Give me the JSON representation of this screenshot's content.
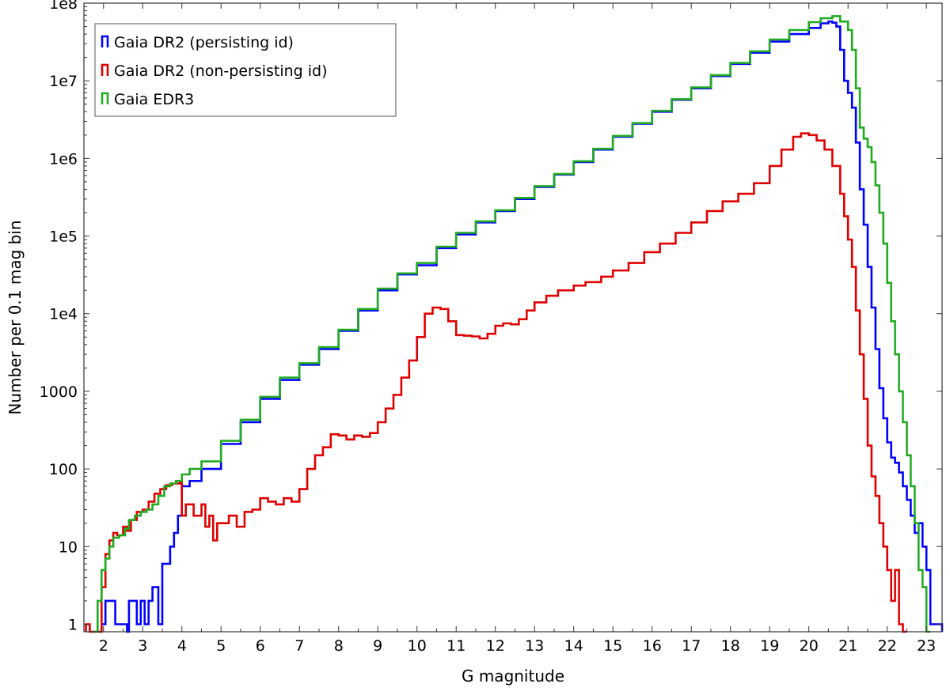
{
  "chart_data": {
    "type": "line",
    "style": "step-histogram",
    "xlabel": "G magnitude",
    "ylabel": "Number per 0.1 mag bin",
    "xlim": [
      1.5,
      23.4
    ],
    "ylim": [
      0.8,
      100000000
    ],
    "yscale": "log",
    "x_ticks": [
      2,
      3,
      4,
      5,
      6,
      7,
      8,
      9,
      10,
      11,
      12,
      13,
      14,
      15,
      16,
      17,
      18,
      19,
      20,
      21,
      22,
      23
    ],
    "y_ticks": [
      {
        "value": 1,
        "label": "1"
      },
      {
        "value": 10,
        "label": "10"
      },
      {
        "value": 100,
        "label": "100"
      },
      {
        "value": 1000,
        "label": "1000"
      },
      {
        "value": 10000,
        "label": "1e4"
      },
      {
        "value": 100000,
        "label": "1e5"
      },
      {
        "value": 1000000,
        "label": "1e6"
      },
      {
        "value": 10000000,
        "label": "1e7"
      },
      {
        "value": 100000000,
        "label": "1e8"
      }
    ],
    "legend_position": "top-left",
    "series": [
      {
        "name": "Gaia DR2 (persisting id)",
        "color": "#0000ff",
        "points": [
          [
            1.95,
            1
          ],
          [
            2.05,
            2
          ],
          [
            2.3,
            1
          ],
          [
            2.6,
            0.8
          ],
          [
            2.65,
            2
          ],
          [
            2.85,
            1
          ],
          [
            2.95,
            2
          ],
          [
            3.05,
            1
          ],
          [
            3.15,
            2
          ],
          [
            3.25,
            3
          ],
          [
            3.4,
            1
          ],
          [
            3.5,
            6
          ],
          [
            3.6,
            6
          ],
          [
            3.7,
            10
          ],
          [
            3.8,
            15
          ],
          [
            3.9,
            25
          ],
          [
            4.0,
            60
          ],
          [
            4.2,
            70
          ],
          [
            4.5,
            100
          ],
          [
            5,
            210
          ],
          [
            5.5,
            400
          ],
          [
            6,
            800
          ],
          [
            6.5,
            1400
          ],
          [
            7,
            2200
          ],
          [
            7.5,
            3500
          ],
          [
            8,
            6000
          ],
          [
            8.5,
            11000
          ],
          [
            9,
            20000
          ],
          [
            9.5,
            32000
          ],
          [
            10,
            42000
          ],
          [
            10.5,
            70000
          ],
          [
            11,
            105000
          ],
          [
            11.5,
            150000
          ],
          [
            12,
            210000
          ],
          [
            12.5,
            300000
          ],
          [
            13,
            430000
          ],
          [
            13.5,
            620000
          ],
          [
            14,
            900000
          ],
          [
            14.5,
            1300000
          ],
          [
            15,
            1900000
          ],
          [
            15.5,
            2800000
          ],
          [
            16,
            4000000
          ],
          [
            16.5,
            5700000
          ],
          [
            17,
            8000000
          ],
          [
            17.5,
            11500000
          ],
          [
            18,
            16500000
          ],
          [
            18.5,
            23000000
          ],
          [
            19,
            32000000
          ],
          [
            19.5,
            40000000
          ],
          [
            20,
            48000000
          ],
          [
            20.3,
            55000000
          ],
          [
            20.5,
            58000000
          ],
          [
            20.6,
            56000000
          ],
          [
            20.7,
            50000000
          ],
          [
            20.8,
            25000000
          ],
          [
            20.9,
            10000000
          ],
          [
            21.0,
            7000000
          ],
          [
            21.1,
            4500000
          ],
          [
            21.2,
            1600000
          ],
          [
            21.3,
            400000
          ],
          [
            21.4,
            140000
          ],
          [
            21.5,
            40000
          ],
          [
            21.6,
            12000
          ],
          [
            21.7,
            3500
          ],
          [
            21.8,
            1100
          ],
          [
            21.9,
            450
          ],
          [
            22.0,
            220
          ],
          [
            22.1,
            140
          ],
          [
            22.2,
            120
          ],
          [
            22.3,
            90
          ],
          [
            22.4,
            60
          ],
          [
            22.5,
            40
          ],
          [
            22.6,
            25
          ],
          [
            22.7,
            15
          ],
          [
            22.8,
            20
          ],
          [
            22.9,
            10
          ],
          [
            23.0,
            5
          ],
          [
            23.1,
            1
          ],
          [
            23.4,
            1
          ]
        ]
      },
      {
        "name": "Gaia DR2 (non-persisting id)",
        "color": "#dd0000",
        "points": [
          [
            1.55,
            1
          ],
          [
            1.65,
            0.8
          ],
          [
            1.85,
            0.8
          ],
          [
            1.95,
            3
          ],
          [
            2.05,
            8
          ],
          [
            2.15,
            12
          ],
          [
            2.25,
            15
          ],
          [
            2.35,
            14
          ],
          [
            2.5,
            18
          ],
          [
            2.6,
            16
          ],
          [
            2.7,
            22
          ],
          [
            2.85,
            28
          ],
          [
            3.0,
            30
          ],
          [
            3.15,
            38
          ],
          [
            3.3,
            48
          ],
          [
            3.45,
            55
          ],
          [
            3.6,
            62
          ],
          [
            3.75,
            65
          ],
          [
            3.95,
            70
          ],
          [
            4.0,
            25
          ],
          [
            4.1,
            35
          ],
          [
            4.3,
            25
          ],
          [
            4.5,
            35
          ],
          [
            4.6,
            18
          ],
          [
            4.7,
            25
          ],
          [
            4.8,
            12
          ],
          [
            4.9,
            20
          ],
          [
            5.0,
            20
          ],
          [
            5.2,
            25
          ],
          [
            5.4,
            18
          ],
          [
            5.6,
            28
          ],
          [
            5.8,
            30
          ],
          [
            6.0,
            42
          ],
          [
            6.2,
            38
          ],
          [
            6.4,
            35
          ],
          [
            6.6,
            42
          ],
          [
            6.8,
            38
          ],
          [
            7.0,
            55
          ],
          [
            7.2,
            100
          ],
          [
            7.4,
            150
          ],
          [
            7.6,
            190
          ],
          [
            7.8,
            280
          ],
          [
            8.0,
            270
          ],
          [
            8.2,
            240
          ],
          [
            8.4,
            270
          ],
          [
            8.6,
            260
          ],
          [
            8.8,
            290
          ],
          [
            9.0,
            400
          ],
          [
            9.2,
            600
          ],
          [
            9.4,
            900
          ],
          [
            9.6,
            1500
          ],
          [
            9.8,
            2500
          ],
          [
            10.0,
            5000
          ],
          [
            10.2,
            10000
          ],
          [
            10.4,
            12000
          ],
          [
            10.6,
            11500
          ],
          [
            10.8,
            8000
          ],
          [
            11.0,
            5300
          ],
          [
            11.2,
            5200
          ],
          [
            11.4,
            5100
          ],
          [
            11.6,
            4800
          ],
          [
            11.8,
            5500
          ],
          [
            12.0,
            7000
          ],
          [
            12.2,
            7500
          ],
          [
            12.4,
            7300
          ],
          [
            12.6,
            8500
          ],
          [
            12.8,
            11000
          ],
          [
            13.0,
            14000
          ],
          [
            13.3,
            17000
          ],
          [
            13.6,
            20000
          ],
          [
            14.0,
            23000
          ],
          [
            14.3,
            25500
          ],
          [
            14.7,
            30000
          ],
          [
            15.0,
            36000
          ],
          [
            15.4,
            45000
          ],
          [
            15.8,
            62000
          ],
          [
            16.2,
            80000
          ],
          [
            16.6,
            110000
          ],
          [
            17.0,
            150000
          ],
          [
            17.4,
            210000
          ],
          [
            17.8,
            280000
          ],
          [
            18.2,
            350000
          ],
          [
            18.6,
            480000
          ],
          [
            19.0,
            800000
          ],
          [
            19.3,
            1300000
          ],
          [
            19.6,
            1900000
          ],
          [
            19.8,
            2100000
          ],
          [
            20.0,
            2000000
          ],
          [
            20.2,
            1700000
          ],
          [
            20.4,
            1300000
          ],
          [
            20.6,
            800000
          ],
          [
            20.8,
            350000
          ],
          [
            20.9,
            180000
          ],
          [
            21.0,
            90000
          ],
          [
            21.1,
            40000
          ],
          [
            21.2,
            11000
          ],
          [
            21.3,
            3000
          ],
          [
            21.4,
            800
          ],
          [
            21.5,
            200
          ],
          [
            21.6,
            80
          ],
          [
            21.7,
            45
          ],
          [
            21.8,
            20
          ],
          [
            21.9,
            10
          ],
          [
            22.0,
            5
          ],
          [
            22.1,
            2
          ],
          [
            22.2,
            5
          ],
          [
            22.3,
            1
          ],
          [
            22.4,
            0.8
          ]
        ]
      },
      {
        "name": "Gaia EDR3",
        "color": "#22aa22",
        "points": [
          [
            1.75,
            0.8
          ],
          [
            1.85,
            2
          ],
          [
            1.95,
            5
          ],
          [
            2.05,
            7
          ],
          [
            2.15,
            10
          ],
          [
            2.25,
            13
          ],
          [
            2.4,
            14
          ],
          [
            2.55,
            17
          ],
          [
            2.65,
            22
          ],
          [
            2.8,
            25
          ],
          [
            2.95,
            28
          ],
          [
            3.1,
            30
          ],
          [
            3.25,
            35
          ],
          [
            3.4,
            45
          ],
          [
            3.55,
            60
          ],
          [
            3.7,
            65
          ],
          [
            3.85,
            70
          ],
          [
            4.0,
            85
          ],
          [
            4.2,
            100
          ],
          [
            4.5,
            125
          ],
          [
            5,
            230
          ],
          [
            5.5,
            430
          ],
          [
            6,
            850
          ],
          [
            6.5,
            1500
          ],
          [
            7,
            2300
          ],
          [
            7.5,
            3700
          ],
          [
            8,
            6200
          ],
          [
            8.5,
            11500
          ],
          [
            9,
            21000
          ],
          [
            9.5,
            33000
          ],
          [
            10,
            45000
          ],
          [
            10.5,
            73000
          ],
          [
            11,
            110000
          ],
          [
            11.5,
            155000
          ],
          [
            12,
            215000
          ],
          [
            12.5,
            310000
          ],
          [
            13,
            440000
          ],
          [
            13.5,
            630000
          ],
          [
            14,
            920000
          ],
          [
            14.5,
            1330000
          ],
          [
            15,
            1950000
          ],
          [
            15.5,
            2850000
          ],
          [
            16,
            4100000
          ],
          [
            16.5,
            5800000
          ],
          [
            17,
            8200000
          ],
          [
            17.5,
            11800000
          ],
          [
            18,
            17000000
          ],
          [
            18.5,
            24000000
          ],
          [
            19,
            34000000
          ],
          [
            19.5,
            45000000
          ],
          [
            20,
            57000000
          ],
          [
            20.3,
            64000000
          ],
          [
            20.6,
            68000000
          ],
          [
            20.8,
            58000000
          ],
          [
            21.0,
            45000000
          ],
          [
            21.1,
            25000000
          ],
          [
            21.2,
            8000000
          ],
          [
            21.3,
            2500000
          ],
          [
            21.4,
            1800000
          ],
          [
            21.5,
            1400000
          ],
          [
            21.6,
            900000
          ],
          [
            21.7,
            450000
          ],
          [
            21.8,
            200000
          ],
          [
            21.9,
            80000
          ],
          [
            22.0,
            25000
          ],
          [
            22.1,
            8000
          ],
          [
            22.2,
            3000
          ],
          [
            22.3,
            1000
          ],
          [
            22.4,
            400
          ],
          [
            22.5,
            150
          ],
          [
            22.6,
            60
          ],
          [
            22.7,
            20
          ],
          [
            22.8,
            5
          ],
          [
            22.9,
            3
          ],
          [
            23.0,
            0.8
          ]
        ]
      }
    ]
  }
}
